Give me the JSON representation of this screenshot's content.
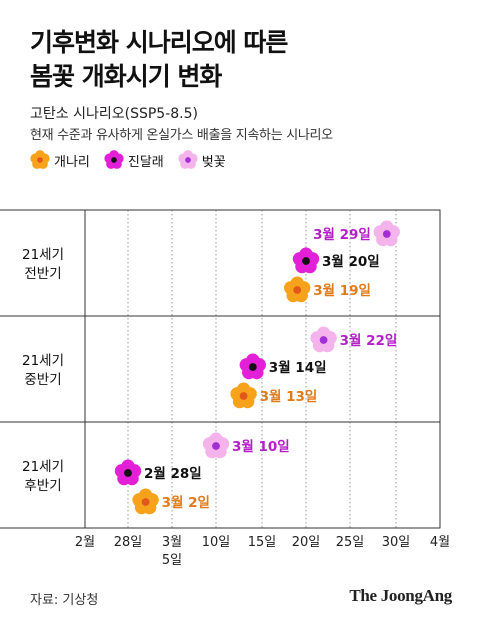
{
  "header": {
    "title_line1": "기후변화 시나리오에 따른",
    "title_line2": "봄꽃 개화시기 변화",
    "subtitle": "고탄소 시나리오(SSP5-8.5)",
    "description": "현재 수준과 유사하게 온실가스 배출을 지속하는 시나리오"
  },
  "legend": [
    {
      "label": "개나리",
      "icon": "forsythia-flower-icon"
    },
    {
      "label": "진달래",
      "icon": "azalea-flower-icon"
    },
    {
      "label": "벚꽃",
      "icon": "cherry-blossom-icon"
    }
  ],
  "colors": {
    "개나리": {
      "petal": "#f7a21b",
      "center": "#e2571b",
      "label": "#e07b1a"
    },
    "진달래": {
      "petal": "#e320d8",
      "center": "#111111",
      "label": "#111111"
    },
    "벚꽃": {
      "petal": "#f5b3ec",
      "center": "#a22fd6",
      "label": "#b41fc8"
    }
  },
  "chart_data": {
    "type": "scatter",
    "x_unit": "date",
    "x_range": [
      "2월 26일",
      "4월 1일"
    ],
    "x_ticks": [
      "2월",
      "28일",
      "3월\n5일",
      "10일",
      "15일",
      "20일",
      "25일",
      "30일",
      "4월"
    ],
    "grid": "vertical dotted at each tick",
    "groups": [
      {
        "label": "21세기\n전반기",
        "points": [
          {
            "series": "벚꽃",
            "date": "3월 29일"
          },
          {
            "series": "진달래",
            "date": "3월 20일"
          },
          {
            "series": "개나리",
            "date": "3월 19일"
          }
        ]
      },
      {
        "label": "21세기\n중반기",
        "points": [
          {
            "series": "벚꽃",
            "date": "3월 22일"
          },
          {
            "series": "진달래",
            "date": "3월 14일"
          },
          {
            "series": "개나리",
            "date": "3월 13일"
          }
        ]
      },
      {
        "label": "21세기\n후반기",
        "points": [
          {
            "series": "벚꽃",
            "date": "3월 10일"
          },
          {
            "series": "진달래",
            "date": "2월 28일"
          },
          {
            "series": "개나리",
            "date": "3월 2일"
          }
        ]
      }
    ]
  },
  "footer": {
    "source": "자료: 기상청",
    "logo": "The JoongAng"
  }
}
